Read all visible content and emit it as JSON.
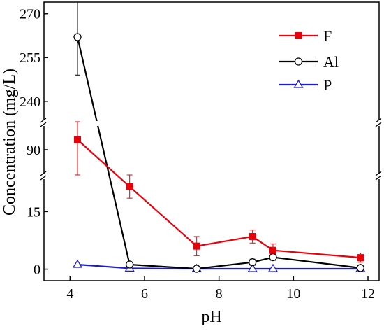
{
  "chart_data": {
    "type": "line",
    "xlabel": "pH",
    "ylabel": "Concentration (mg/L)",
    "xlim": [
      3.3,
      12.3
    ],
    "x_ticks": [
      4,
      6,
      8,
      10,
      12
    ],
    "y_segments": [
      {
        "range": [
          -3,
          24
        ],
        "ticks": [
          0,
          15
        ]
      },
      {
        "range": [
          80,
          100
        ],
        "ticks": [
          90
        ]
      },
      {
        "range": [
          233,
          274
        ],
        "ticks": [
          240,
          255,
          270
        ]
      }
    ],
    "axis_break": true,
    "grid": false,
    "legend_position": "top-right",
    "series": [
      {
        "name": "F",
        "color": "#e8000b",
        "marker": "filled-square",
        "x": [
          4.2,
          5.6,
          7.4,
          8.9,
          9.45,
          11.8
        ],
        "y": [
          94,
          21.5,
          6.0,
          8.5,
          4.9,
          3.0
        ],
        "error": [
          16,
          3.0,
          2.5,
          1.7,
          1.7,
          1.2
        ]
      },
      {
        "name": "Al",
        "color": "#000000",
        "marker": "open-circle",
        "x": [
          4.2,
          5.6,
          7.4,
          8.9,
          9.45,
          11.8
        ],
        "y": [
          262,
          1.2,
          0.1,
          1.8,
          3.1,
          0.3
        ],
        "error": [
          13,
          0.5,
          0.3,
          0.8,
          0.8,
          0.3
        ]
      },
      {
        "name": "P",
        "color": "#1c1cc8",
        "marker": "open-triangle",
        "x": [
          4.2,
          5.6,
          7.4,
          8.9,
          9.45,
          11.8
        ],
        "y": [
          1.2,
          0.2,
          0.1,
          0.1,
          0.1,
          0.1
        ],
        "error": [
          0,
          0,
          0,
          0,
          0,
          0
        ]
      }
    ]
  }
}
